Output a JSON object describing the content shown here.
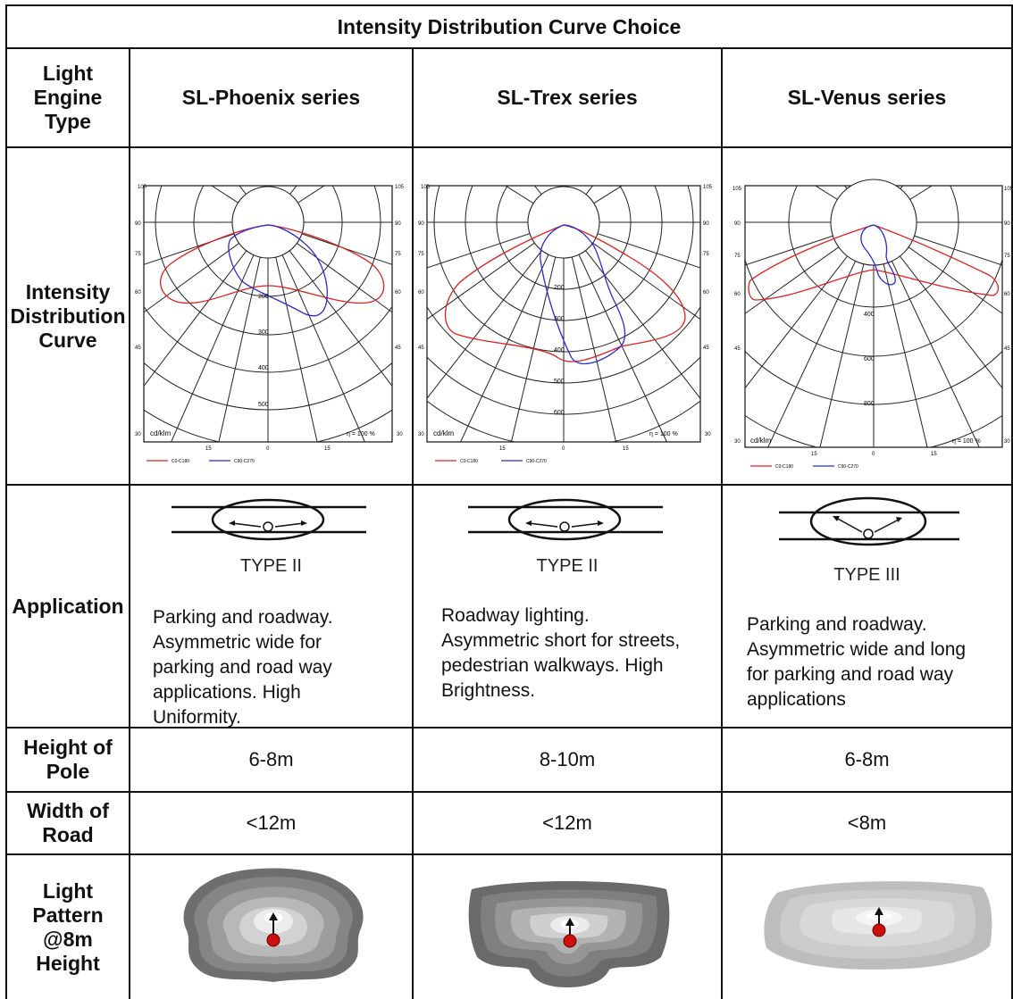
{
  "table": {
    "title": "Intensity Distribution Curve Choice",
    "row_labels": {
      "engine": "Light\nEngine\nType",
      "curve": "Intensity\nDistribution\nCurve",
      "application": "Application",
      "pole": "Height of\nPole",
      "road": "Width of\nRoad",
      "pattern": "Light\nPattern\n@8m\nHeight"
    },
    "columns": [
      {
        "series": "SL-Phoenix series",
        "app_type": "TYPE II",
        "app_desc": "Parking and roadway.\nAsymmetric wide for\nparking and road way\napplications. High\nUniformity.",
        "pole_height": "6-8m",
        "road_width": "<12m",
        "curve": {
          "top_left": "105",
          "top_right": "105",
          "angles_left": [
            "90",
            "75",
            "60",
            "45",
            "30"
          ],
          "angles_right": [
            "90",
            "75",
            "60",
            "45",
            "30"
          ],
          "radial_labels": [
            "200",
            "300",
            "400",
            "500"
          ],
          "unit": "cd/klm",
          "efficiency": "η = 100 %",
          "bottom_ticks": [
            "15",
            "0",
            "15"
          ],
          "legend": [
            "C0-C180",
            "C90-C270"
          ]
        }
      },
      {
        "series": "SL-Trex series",
        "app_type": "TYPE II",
        "app_desc": "Roadway lighting.\nAsymmetric short for streets,\npedestrian walkways. High\nBrightness.",
        "pole_height": "8-10m",
        "road_width": "<12m",
        "curve": {
          "top_left": "105",
          "top_right": "105",
          "angles_left": [
            "90",
            "75",
            "60",
            "45",
            "30"
          ],
          "angles_right": [
            "90",
            "75",
            "60",
            "45",
            "30"
          ],
          "radial_labels": [
            "200",
            "300",
            "400",
            "500",
            "600"
          ],
          "unit": "cd/klm",
          "efficiency": "η = 100 %",
          "bottom_ticks": [
            "15",
            "0",
            "15"
          ],
          "legend": [
            "C0-C180",
            "C90-C270"
          ]
        }
      },
      {
        "series": "SL-Venus series",
        "app_type": "TYPE III",
        "app_desc": "Parking and roadway.\nAsymmetric wide and long\nfor parking and road way\napplications",
        "pole_height": "6-8m",
        "road_width": "<8m",
        "curve": {
          "top_left": "105",
          "top_right": "105",
          "angles_left": [
            "90",
            "75",
            "60",
            "45",
            "30"
          ],
          "angles_right": [
            "90",
            "75",
            "60",
            "45",
            "30"
          ],
          "radial_labels": [
            "400",
            "600",
            "800"
          ],
          "unit": "cd/klm",
          "efficiency": "η = 100 %",
          "bottom_ticks": [
            "15",
            "0",
            "15"
          ],
          "legend": [
            "C0-C180",
            "C90-C270"
          ]
        }
      }
    ]
  },
  "colors": {
    "grid": "#111111",
    "c0_curve": "#e02020",
    "c90_curve": "#2a2ad8",
    "pattern_dot": "#cc1010"
  }
}
